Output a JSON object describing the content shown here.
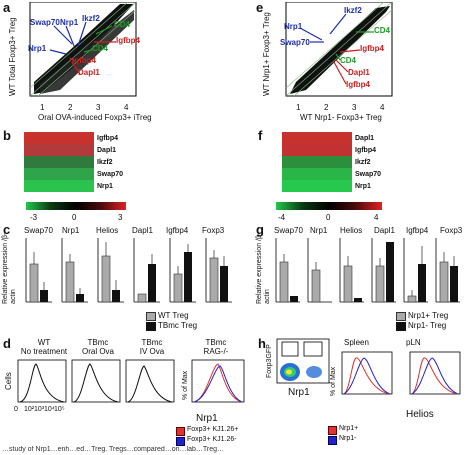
{
  "panels": {
    "a": {
      "letter": "a",
      "ylabel": "WT Total Foxp3+ Treg",
      "xlabel": "Oral OVA-induced Foxp3+ iTreg",
      "ticks": [
        "1",
        "2",
        "3",
        "4"
      ],
      "labels": [
        {
          "text": "Swap70",
          "color": "#1f2fa8"
        },
        {
          "text": "Nrp1",
          "color": "#1f2fa8"
        },
        {
          "text": "Ikzf2",
          "color": "#1f2fa8"
        },
        {
          "text": "Nrp1",
          "color": "#1f2fa8"
        },
        {
          "text": "CD4",
          "color": "#1f9a2a"
        },
        {
          "text": "CD4",
          "color": "#1f9a2a"
        },
        {
          "text": "Igfbp4",
          "color": "#cc1f1f"
        },
        {
          "text": "Igfbp4",
          "color": "#cc1f1f"
        },
        {
          "text": "Dapl1",
          "color": "#cc1f1f"
        }
      ]
    },
    "e": {
      "letter": "e",
      "ylabel": "WT Nrp1+ Foxp3+ Treg",
      "xlabel": "WT Nrp1- Foxp3+ Treg",
      "ticks": [
        "1",
        "2",
        "3",
        "4"
      ],
      "labels": [
        {
          "text": "Ikzf2",
          "color": "#1f2fa8"
        },
        {
          "text": "Nrp1",
          "color": "#1f2fa8"
        },
        {
          "text": "Swap70",
          "color": "#1f2fa8"
        },
        {
          "text": "CD4",
          "color": "#1f9a2a"
        },
        {
          "text": "CD4",
          "color": "#1f9a2a"
        },
        {
          "text": "Igfbp4",
          "color": "#cc1f1f"
        },
        {
          "text": "Dapl1",
          "color": "#cc1f1f"
        },
        {
          "text": "Igfbp4",
          "color": "#cc1f1f"
        }
      ]
    },
    "b": {
      "letter": "b",
      "genes": [
        "Igfbp4",
        "Dapl1",
        "Ikzf2",
        "Swap70",
        "Nrp1"
      ],
      "colors": [
        "#c8322d",
        "#b23a3a",
        "#2f7a3c",
        "#2fa44a",
        "#2bc34e"
      ],
      "scale_ticks": [
        "-3",
        "0",
        "3"
      ]
    },
    "f": {
      "letter": "f",
      "genes": [
        "Dapl1",
        "Igfbp4",
        "Ikzf2",
        "Swap70",
        "Nrp1"
      ],
      "colors": [
        "#c8322d",
        "#c23232",
        "#2b8f3c",
        "#2ab548",
        "#26c84e"
      ],
      "scale_ticks": [
        "-4",
        "0",
        "4"
      ]
    },
    "c": {
      "letter": "c",
      "ylabel": "Relative expression /β-actin",
      "groups": [
        "Swap70",
        "Nrp1",
        "Helios",
        "Dapl1",
        "Igfbp4",
        "Foxp3"
      ],
      "legend": [
        "WT Treg",
        "TBmc Treg"
      ]
    },
    "g": {
      "letter": "g",
      "ylabel": "Relative expression /β-actin",
      "groups": [
        "Swap70",
        "Nrp1",
        "Helios",
        "Dapl1",
        "Igfbp4",
        "Foxp3"
      ],
      "legend": [
        "Nrp1+ Treg",
        "Nrp1- Treg"
      ]
    },
    "d": {
      "letter": "d",
      "cells_label": "Cells",
      "titles": [
        {
          "l1": "WT",
          "l2": "No treatment"
        },
        {
          "l1": "TBmc",
          "l2": "Oral Ova"
        },
        {
          "l1": "TBmc",
          "l2": "IV Ova"
        },
        {
          "l1": "TBmc",
          "l2": "RAG-/-"
        }
      ],
      "axis_ticks": [
        "0",
        "10²",
        "10³",
        "10⁴",
        "10⁵"
      ],
      "pct_label": "% of Max",
      "xlabel": "Nrp1",
      "legend": [
        "Foxp3+ KJ1.26+",
        "Foxp3+ KJ1.26-"
      ]
    },
    "h": {
      "letter": "h",
      "foxp3_label": "Foxp3GFP",
      "nrp1_label": "Nrp1",
      "spleen_label": "Spleen",
      "pln_label": "pLN",
      "pct_label": "% of Max",
      "helios_label": "Helios",
      "legend": [
        "Nrp1+",
        "Nrp1-"
      ]
    }
  },
  "caption_fragment": "…study of Nrp1…enh…ed…Treg. Tregs…compared…on…lab…Treg…"
}
